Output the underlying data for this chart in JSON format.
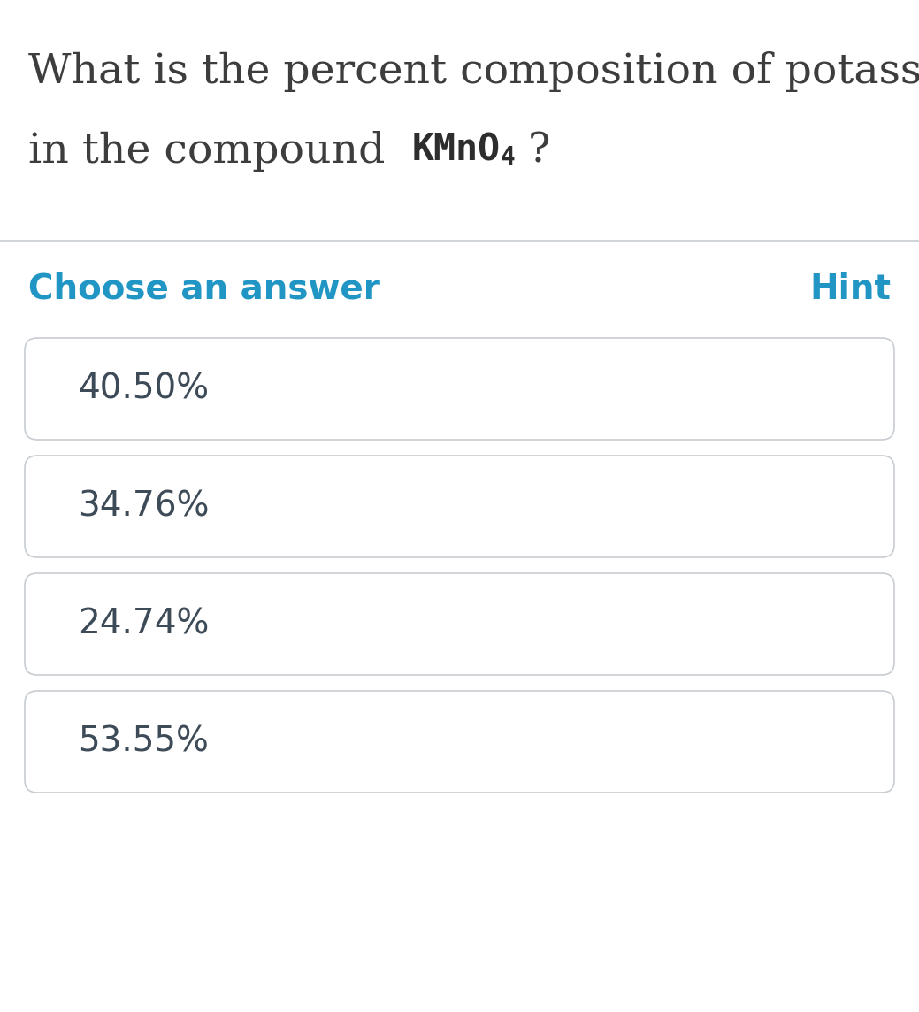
{
  "question_line1": "What is the percent composition of potassium",
  "question_line2_prefix": "in the compound  ",
  "compound_text": "KMnO",
  "compound_subscript": "4",
  "question_end": " ?",
  "section_label": "Choose an answer",
  "hint_label": "Hint",
  "choices": [
    "40.50%",
    "34.76%",
    "24.74%",
    "53.55%"
  ],
  "bg_color": "#ffffff",
  "question_text_color": "#3d3d3d",
  "compound_color": "#2d2d2d",
  "section_label_color": "#2196c4",
  "hint_color": "#2196c4",
  "choice_text_color": "#3d4a57",
  "box_border_color": "#c8cdd2",
  "box_bg_color": "#ffffff",
  "divider_color": "#c8cdd2",
  "question_fontsize": 34,
  "compound_fontsize": 30,
  "section_fontsize": 28,
  "hint_fontsize": 28,
  "choice_fontsize": 28,
  "fig_width": 10.39,
  "fig_height": 11.44,
  "dpi": 100
}
